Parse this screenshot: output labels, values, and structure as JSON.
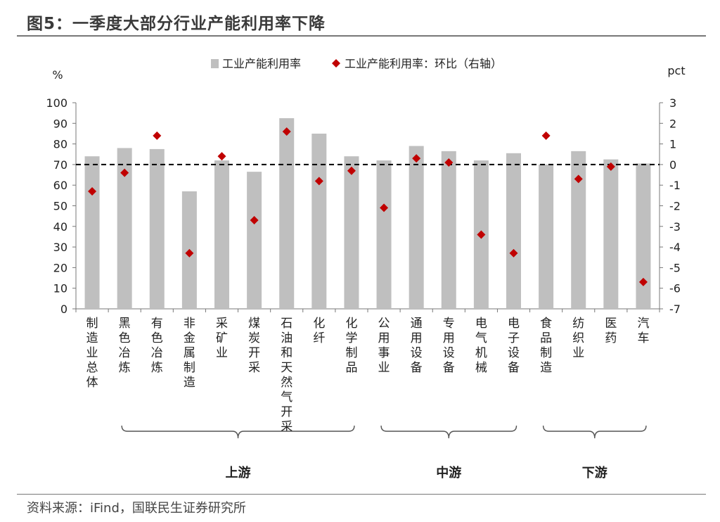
{
  "header": {
    "title": "图5：一季度大部分行业产能利用率下降"
  },
  "footer": {
    "source": "资料来源：iFind，国联民生证券研究所"
  },
  "colors": {
    "bar": "#bfbfbf",
    "marker": "#c00000",
    "axis": "#777777",
    "zero_line": "#000000"
  },
  "chart_data": {
    "type": "bar",
    "categories": [
      "制造业总体",
      "黑色冶炼",
      "有色冶炼",
      "非金属制造",
      "采矿业",
      "煤炭开采",
      "石油和天然气开采",
      "化纤",
      "化学制品",
      "公用事业",
      "通用设备",
      "专用设备",
      "电气机械",
      "电子设备",
      "食品制造",
      "纺织业",
      "医药",
      "汽车"
    ],
    "series": [
      {
        "name": "工业产能利用率",
        "type": "bar",
        "axis": "left",
        "values": [
          74,
          78,
          77.5,
          57,
          72,
          66.5,
          92.5,
          85,
          74,
          72,
          79,
          76.5,
          72,
          75.5,
          70,
          76.5,
          72.5,
          70.5
        ]
      },
      {
        "name": "工业产能利用率：环比（右轴）",
        "type": "scatter",
        "axis": "right",
        "values": [
          -1.3,
          -0.4,
          1.4,
          -4.3,
          0.4,
          -2.7,
          1.6,
          -0.8,
          -0.3,
          -2.1,
          0.3,
          0.1,
          -3.4,
          -4.3,
          1.4,
          -0.7,
          -0.1,
          -5.7
        ]
      }
    ],
    "yunit_left": "%",
    "yunit_right": "pct",
    "ylim_left": [
      0,
      100
    ],
    "yticks_left": [
      0,
      10,
      20,
      30,
      40,
      50,
      60,
      70,
      80,
      90,
      100
    ],
    "ylim_right": [
      -7,
      3
    ],
    "yticks_right": [
      -7,
      -6,
      -5,
      -4,
      -3,
      -2,
      -1,
      0,
      1,
      2,
      3
    ],
    "reference_line": {
      "axis": "right",
      "value": 0,
      "style": "dashed"
    },
    "legend_position": "top-center",
    "groups": [
      {
        "label": "上游",
        "first": 1,
        "last": 8
      },
      {
        "label": "中游",
        "first": 9,
        "last": 13
      },
      {
        "label": "下游",
        "first": 14,
        "last": 17
      }
    ]
  }
}
